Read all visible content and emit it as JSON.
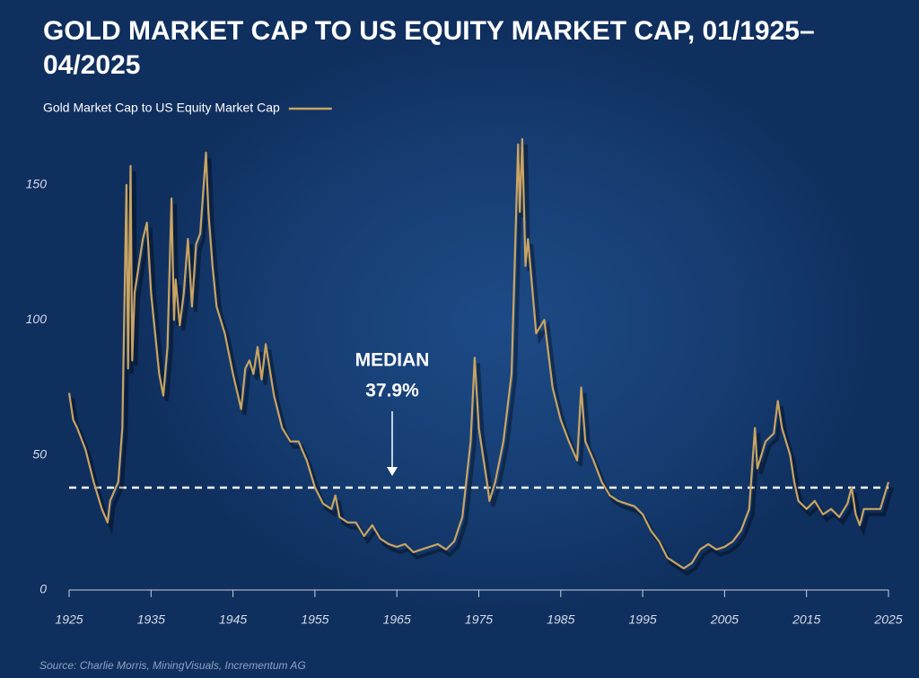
{
  "chart_data": {
    "type": "line",
    "title": "GOLD MARKET CAP TO US EQUITY MARKET CAP, 01/1925–04/2025",
    "source": "Source: Charlie Morris, MiningVisuals, Incrementum AG",
    "x": [
      1925,
      1925.5,
      1926,
      1927,
      1928,
      1929,
      1929.7,
      1930,
      1931,
      1931.5,
      1932,
      1932.2,
      1932.5,
      1932.7,
      1933,
      1934,
      1934.5,
      1935,
      1936,
      1936.5,
      1937,
      1937.5,
      1937.8,
      1938,
      1938.5,
      1939,
      1939.5,
      1940,
      1940.5,
      1941,
      1941.7,
      1942,
      1942.5,
      1943,
      1944,
      1945,
      1946,
      1946.5,
      1947,
      1947.5,
      1948,
      1948.5,
      1949,
      1950,
      1951,
      1952,
      1953,
      1954,
      1955,
      1956,
      1957,
      1957.5,
      1958,
      1959,
      1960,
      1961,
      1962,
      1963,
      1964,
      1965,
      1966,
      1967,
      1968,
      1969,
      1970,
      1971,
      1972,
      1973,
      1974,
      1974.5,
      1975,
      1976,
      1976.3,
      1977,
      1978,
      1979,
      1979.8,
      1980,
      1980.3,
      1980.7,
      1981,
      1982,
      1983,
      1984,
      1985,
      1986,
      1987,
      1987.5,
      1988,
      1989,
      1990,
      1991,
      1992,
      1993,
      1994,
      1995,
      1996,
      1997,
      1998,
      1999,
      2000,
      2001,
      2002,
      2003,
      2004,
      2005,
      2006,
      2007,
      2008,
      2008.7,
      2009,
      2010,
      2011,
      2011.5,
      2012,
      2013,
      2013.5,
      2014,
      2015,
      2016,
      2017,
      2018,
      2019,
      2020,
      2020.5,
      2021,
      2021.5,
      2022,
      2023,
      2024,
      2025
    ],
    "series": [
      {
        "name": "Gold Market Cap to US Equity Market Cap",
        "color": "#c9a463",
        "values": [
          73,
          63,
          60,
          52,
          40,
          30,
          25,
          33,
          40,
          60,
          150,
          82,
          157,
          85,
          110,
          130,
          136,
          110,
          80,
          72,
          90,
          145,
          100,
          115,
          98,
          110,
          130,
          105,
          128,
          132,
          162,
          140,
          120,
          105,
          95,
          80,
          67,
          82,
          85,
          80,
          90,
          78,
          91,
          72,
          60,
          55,
          55,
          48,
          38,
          32,
          30,
          35,
          27,
          25,
          25,
          20,
          24,
          19,
          17,
          16,
          17,
          14,
          15,
          16,
          17,
          15,
          18,
          27,
          55,
          86,
          60,
          40,
          33,
          40,
          55,
          80,
          165,
          140,
          167,
          120,
          130,
          95,
          100,
          75,
          63,
          55,
          48,
          75,
          55,
          48,
          40,
          35,
          33,
          32,
          31,
          28,
          22,
          18,
          12,
          10,
          8,
          10,
          15,
          17,
          15,
          16,
          18,
          22,
          30,
          60,
          45,
          55,
          58,
          70,
          60,
          50,
          40,
          33,
          30,
          33,
          28,
          30,
          27,
          32,
          38,
          28,
          24,
          30,
          30,
          30,
          40
        ]
      }
    ],
    "xlim": [
      1925,
      2025
    ],
    "ylim": [
      0,
      170
    ],
    "xticks": [
      1925,
      1935,
      1945,
      1955,
      1965,
      1975,
      1985,
      1995,
      2005,
      2015,
      2025
    ],
    "yticks": [
      0,
      50,
      100,
      150
    ],
    "median": {
      "title": "MEDIAN",
      "value": 37.9,
      "label": "37.9%"
    }
  }
}
